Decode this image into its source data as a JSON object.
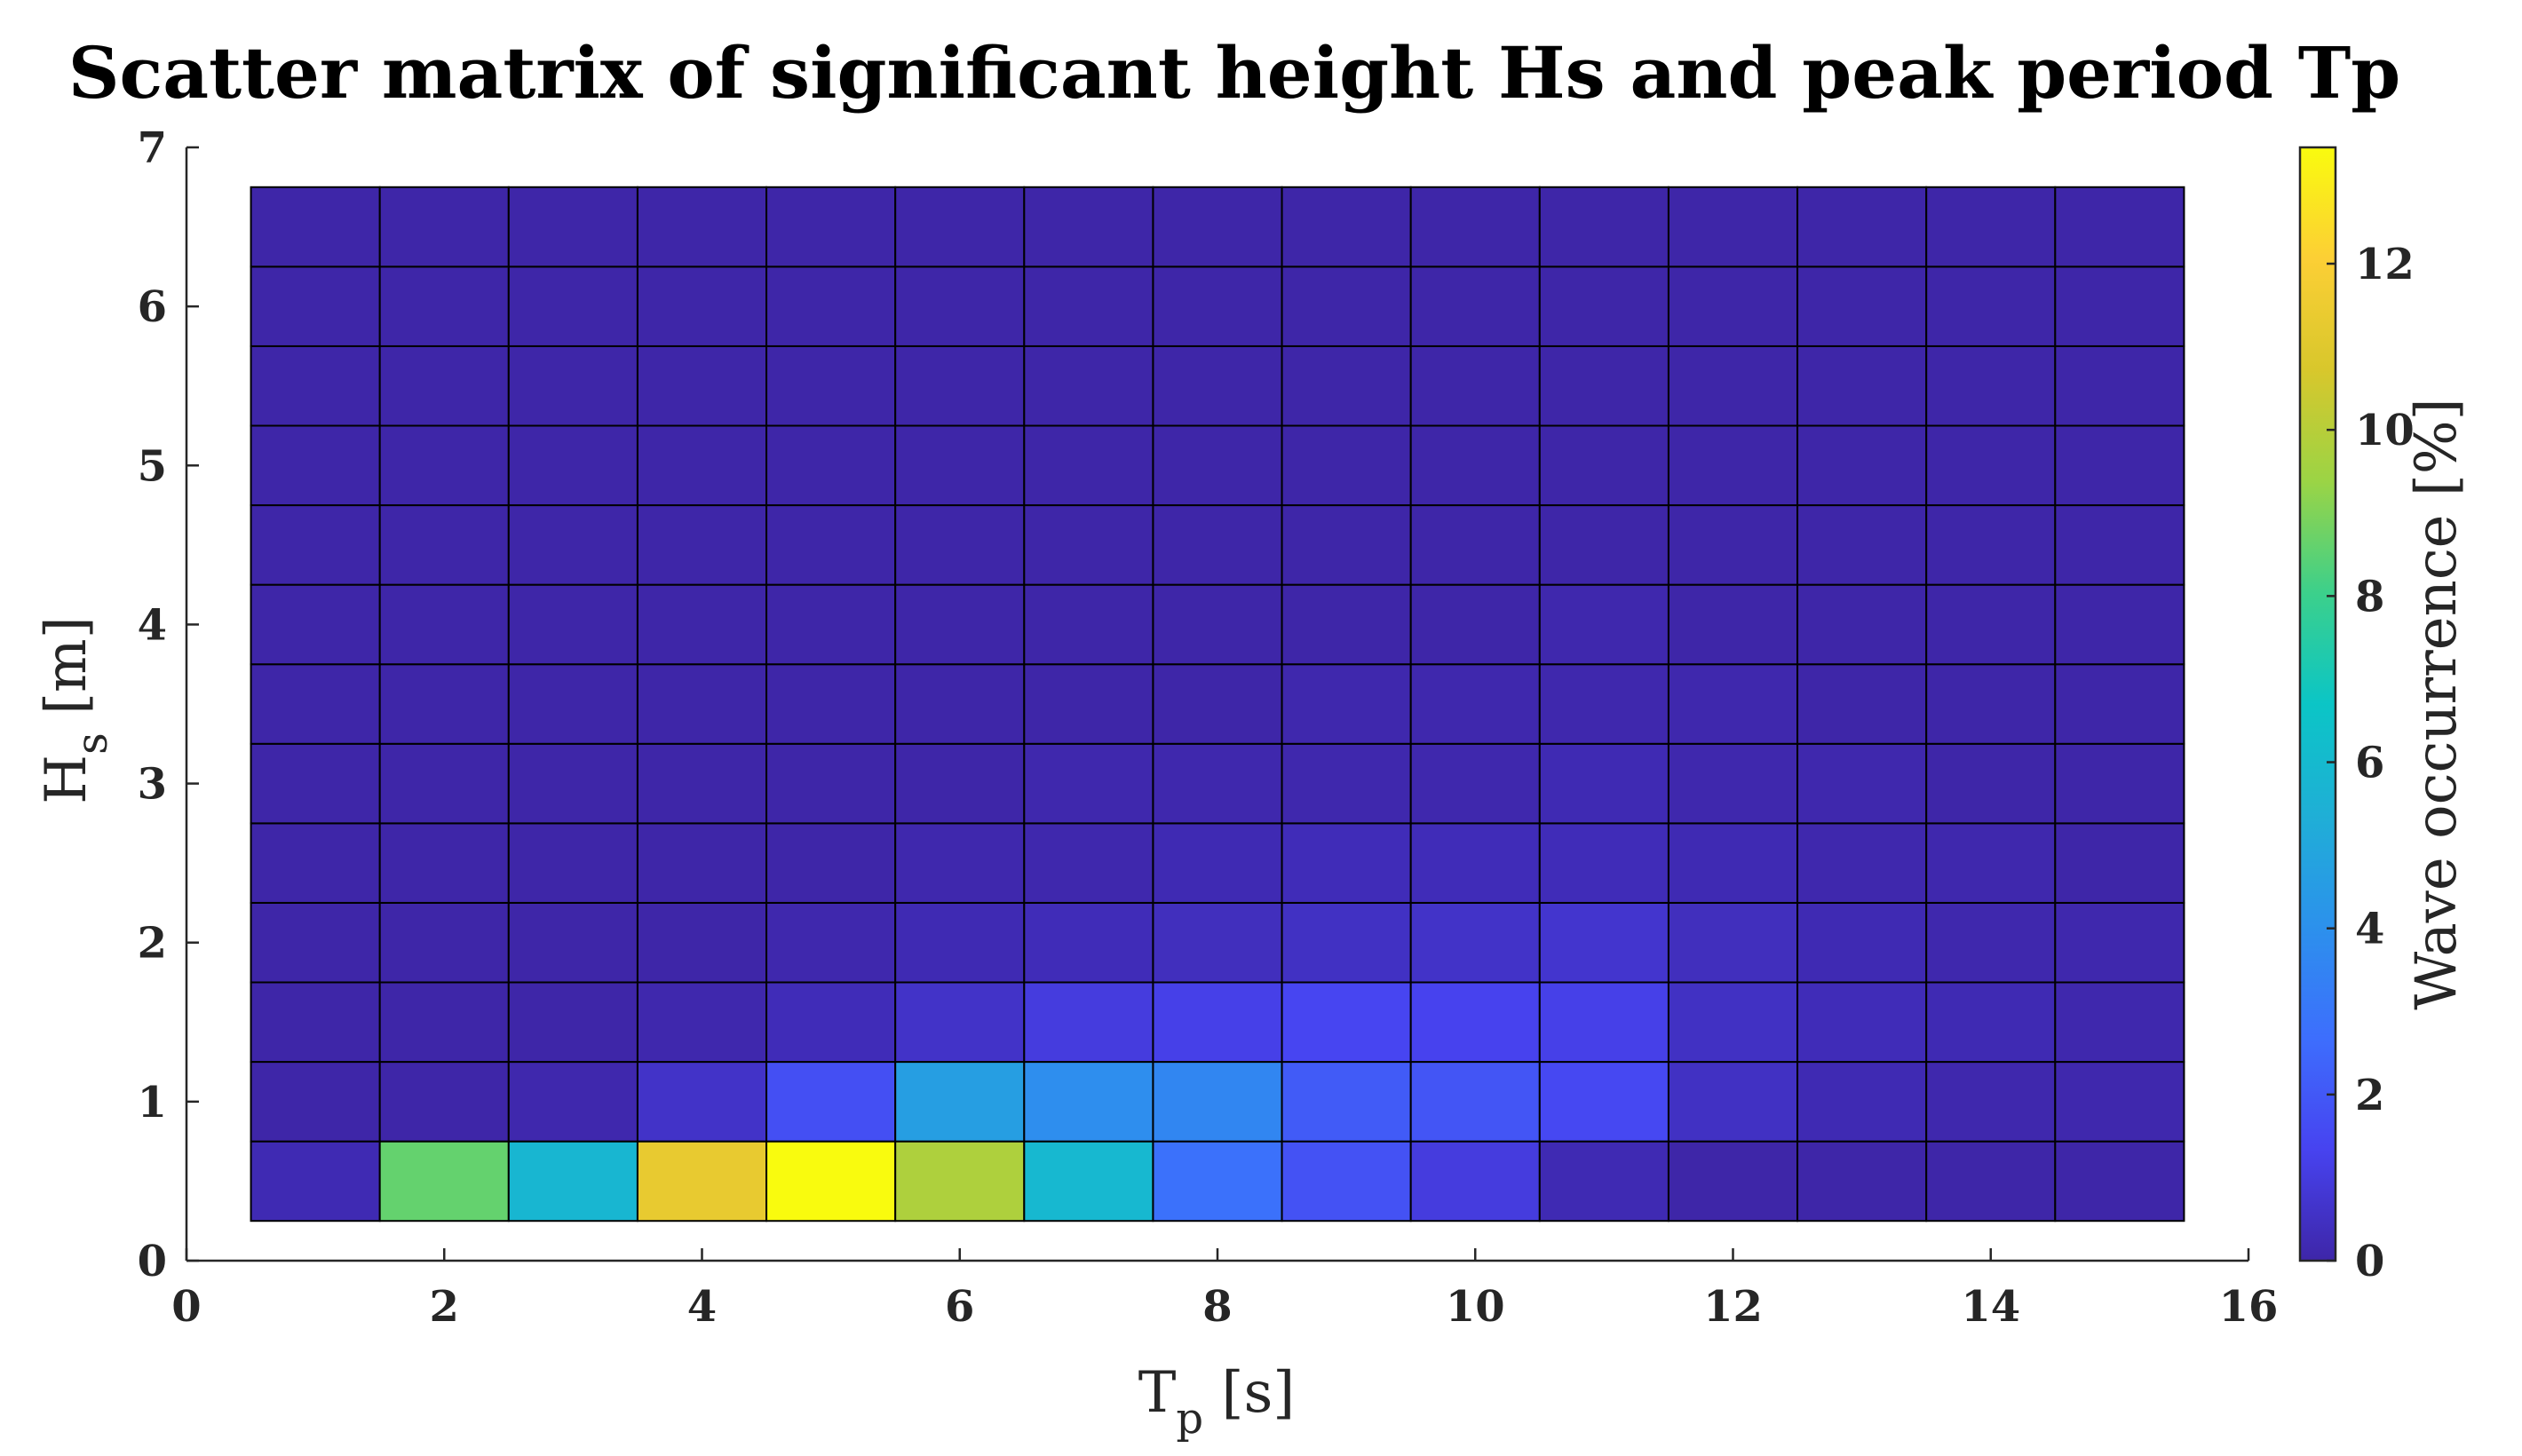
{
  "chart_data": {
    "type": "heatmap",
    "title": "Scatter matrix of significant height Hs and peak period Tp",
    "xlabel": {
      "main": "T",
      "sub": "p",
      "unit": " [s]"
    },
    "ylabel": {
      "main": "H",
      "sub": "s",
      "unit": " [m]"
    },
    "colorbar_label": "Wave occurrence [%]",
    "xlim": [
      0,
      16
    ],
    "ylim": [
      0,
      7
    ],
    "xticks": [
      0,
      2,
      4,
      6,
      8,
      10,
      12,
      14,
      16
    ],
    "yticks": [
      0,
      1,
      2,
      3,
      4,
      5,
      6,
      7
    ],
    "colorbar_range": [
      0,
      13.4
    ],
    "colorbar_ticks": [
      0,
      2,
      4,
      6,
      8,
      10,
      12
    ],
    "colormap": "parula",
    "x_centers": [
      1,
      2,
      3,
      4,
      5,
      6,
      7,
      8,
      9,
      10,
      11,
      12,
      13,
      14,
      15
    ],
    "y_centers": [
      0.5,
      1.0,
      1.5,
      2.0,
      2.5,
      3.0,
      3.5,
      4.0,
      4.5,
      5.0,
      5.5,
      6.0,
      6.5
    ],
    "x_bin_width": 1,
    "y_bin_height": 0.5,
    "values": [
      [
        0.2,
        8.6,
        5.8,
        11.3,
        13.4,
        9.8,
        5.9,
        2.8,
        1.8,
        1.0,
        0.2,
        0.0,
        0.0,
        0.0,
        0.0
      ],
      [
        0.0,
        0.0,
        0.1,
        0.6,
        1.7,
        4.6,
        3.9,
        3.6,
        2.1,
        1.9,
        1.5,
        0.5,
        0.2,
        0.1,
        0.1
      ],
      [
        0.0,
        0.0,
        0.0,
        0.1,
        0.3,
        0.6,
        1.0,
        1.2,
        1.4,
        1.3,
        1.2,
        0.5,
        0.3,
        0.2,
        0.1
      ],
      [
        0.0,
        0.0,
        0.0,
        0.0,
        0.1,
        0.2,
        0.3,
        0.4,
        0.5,
        0.6,
        0.7,
        0.4,
        0.2,
        0.1,
        0.1
      ],
      [
        0.0,
        0.0,
        0.0,
        0.0,
        0.0,
        0.1,
        0.1,
        0.2,
        0.3,
        0.3,
        0.3,
        0.2,
        0.1,
        0.1,
        0.0
      ],
      [
        0.0,
        0.0,
        0.0,
        0.0,
        0.0,
        0.0,
        0.1,
        0.1,
        0.1,
        0.1,
        0.2,
        0.1,
        0.1,
        0.0,
        0.0
      ],
      [
        0.0,
        0.0,
        0.0,
        0.0,
        0.0,
        0.0,
        0.0,
        0.0,
        0.1,
        0.1,
        0.1,
        0.1,
        0.0,
        0.0,
        0.0
      ],
      [
        0.0,
        0.0,
        0.0,
        0.0,
        0.0,
        0.0,
        0.0,
        0.0,
        0.0,
        0.0,
        0.1,
        0.0,
        0.0,
        0.0,
        0.0
      ],
      [
        0.0,
        0.0,
        0.0,
        0.0,
        0.0,
        0.0,
        0.0,
        0.0,
        0.0,
        0.0,
        0.0,
        0.0,
        0.0,
        0.0,
        0.0
      ],
      [
        0.0,
        0.0,
        0.0,
        0.0,
        0.0,
        0.0,
        0.0,
        0.0,
        0.0,
        0.0,
        0.0,
        0.0,
        0.0,
        0.0,
        0.0
      ],
      [
        0.0,
        0.0,
        0.0,
        0.0,
        0.0,
        0.0,
        0.0,
        0.0,
        0.0,
        0.0,
        0.0,
        0.0,
        0.0,
        0.0,
        0.0
      ],
      [
        0.0,
        0.0,
        0.0,
        0.0,
        0.0,
        0.0,
        0.0,
        0.0,
        0.0,
        0.0,
        0.0,
        0.0,
        0.0,
        0.0,
        0.0
      ],
      [
        0.0,
        0.0,
        0.0,
        0.0,
        0.0,
        0.0,
        0.0,
        0.0,
        0.0,
        0.0,
        0.0,
        0.0,
        0.0,
        0.0,
        0.0
      ]
    ],
    "grid": false
  }
}
